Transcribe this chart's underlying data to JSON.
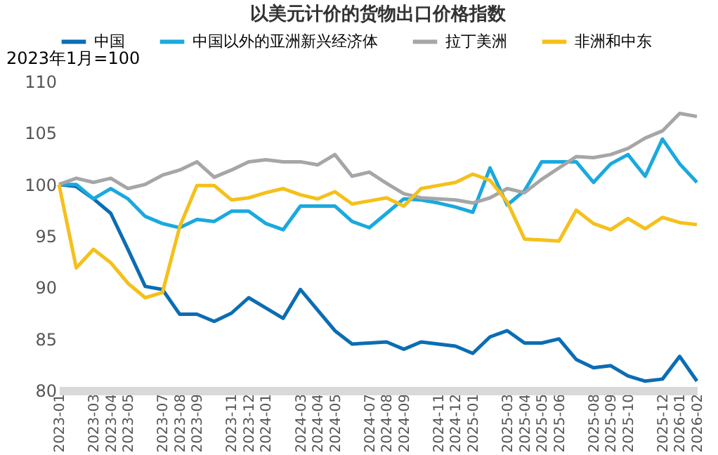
{
  "chart_data": {
    "type": "line",
    "title": "以美元计价的货物出口价格指数",
    "ylabel": "2023年1月=100",
    "categories": [
      "2023-01",
      null,
      "2023-03",
      "2023-04",
      "2023-05",
      null,
      "2023-07",
      "2023-08",
      "2023-09",
      null,
      "2023-11",
      "2023-12",
      "2024-01",
      null,
      "2024-03",
      "2024-04",
      "2024-05",
      null,
      "2024-07",
      "2024-08",
      "2024-09",
      null,
      "2024-11",
      "2024-12",
      "2025-01",
      null,
      "2025-03",
      "2025-04",
      "2025-05",
      "2025-06",
      null,
      "2025-08",
      "2025-09",
      "2025-10",
      null,
      "2025-12",
      "2026-01",
      "2026-02"
    ],
    "series": [
      {
        "name": "中国",
        "color": "#0b6db3",
        "values": [
          100,
          99.8,
          98.6,
          97.2,
          93.7,
          90.1,
          89.8,
          87.4,
          87.4,
          86.7,
          87.5,
          89.0,
          88.0,
          87.0,
          89.8,
          87.8,
          85.8,
          84.5,
          84.6,
          84.7,
          84.0,
          84.7,
          84.5,
          84.3,
          83.6,
          85.2,
          85.8,
          84.6,
          84.6,
          85.0,
          83.0,
          82.2,
          82.4,
          81.4,
          80.9,
          81.1,
          83.3,
          80.9
        ]
      },
      {
        "name": "中国以外的亚洲新兴经济体",
        "color": "#1aa9df",
        "values": [
          100,
          100,
          98.6,
          99.6,
          98.6,
          96.9,
          96.2,
          95.8,
          96.6,
          96.4,
          97.4,
          97.4,
          96.2,
          95.6,
          97.9,
          97.9,
          97.9,
          96.4,
          95.8,
          97.2,
          98.6,
          98.5,
          98.2,
          97.8,
          97.3,
          101.6,
          98.0,
          99.4,
          102.2,
          102.2,
          102.2,
          100.2,
          102.0,
          102.9,
          100.8,
          104.4,
          102.0,
          100.2
        ]
      },
      {
        "name": "拉丁美洲",
        "color": "#a6a6a6",
        "values": [
          100,
          100.6,
          100.2,
          100.6,
          99.6,
          100.0,
          100.9,
          101.4,
          102.2,
          100.7,
          101.4,
          102.2,
          102.4,
          102.2,
          102.2,
          101.9,
          102.9,
          100.8,
          101.2,
          100.1,
          99.1,
          98.7,
          98.6,
          98.5,
          98.2,
          98.7,
          99.6,
          99.2,
          100.5,
          101.6,
          102.7,
          102.6,
          102.9,
          103.5,
          104.5,
          105.2,
          106.9,
          106.6
        ]
      },
      {
        "name": "非洲和中东",
        "color": "#f5c01a",
        "values": [
          100,
          91.9,
          93.7,
          92.4,
          90.4,
          89.0,
          89.5,
          95.9,
          99.9,
          99.9,
          98.5,
          98.7,
          99.2,
          99.6,
          99.0,
          98.6,
          99.3,
          98.1,
          98.4,
          98.7,
          97.9,
          99.6,
          99.9,
          100.2,
          101.0,
          100.4,
          98.3,
          94.7,
          94.6,
          94.5,
          97.5,
          96.2,
          95.6,
          96.7,
          95.7,
          96.8,
          96.3,
          96.1
        ]
      }
    ],
    "ylim": [
      80,
      110
    ],
    "yticks": [
      80,
      85,
      90,
      95,
      100,
      105,
      110
    ],
    "grid": false,
    "legend": "top",
    "marker": "none",
    "line_style": "solid"
  }
}
